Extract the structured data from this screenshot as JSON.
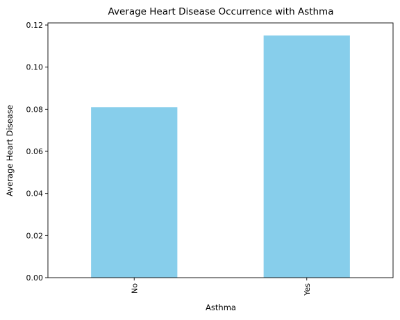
{
  "chart_data": {
    "type": "bar",
    "title": "Average Heart Disease Occurrence with Asthma",
    "xlabel": "Asthma",
    "ylabel": "Average Heart Disease",
    "categories": [
      "No",
      "Yes"
    ],
    "values": [
      0.081,
      0.115
    ],
    "ylim": [
      0,
      0.121
    ],
    "yticks": [
      0.0,
      0.02,
      0.04,
      0.06,
      0.08,
      0.1,
      0.12
    ],
    "ytick_labels": [
      "0.00",
      "0.02",
      "0.04",
      "0.06",
      "0.08",
      "0.10",
      "0.12"
    ],
    "bar_color": "#87CEEB",
    "grid": false,
    "legend": "none"
  }
}
